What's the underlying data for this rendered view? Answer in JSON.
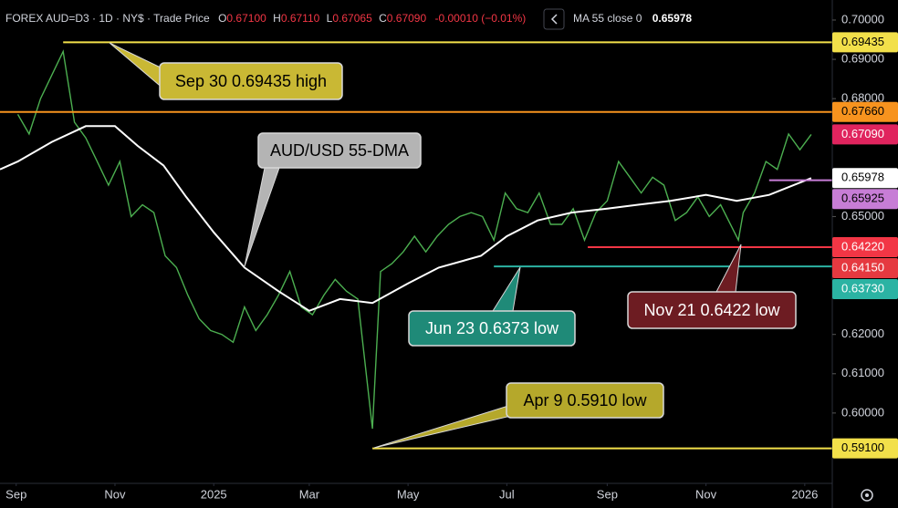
{
  "header": {
    "ohlc": [
      {
        "key": "O",
        "value": "0.67100"
      },
      {
        "key": "H",
        "value": "0.67110"
      },
      {
        "key": "L",
        "value": "0.67065"
      },
      {
        "key": "C",
        "value": "0.67090"
      }
    ],
    "change": "-0.00010 (−0.01%)",
    "indicator_value": "0.65978"
  },
  "chart_data": {
    "type": "line",
    "series": [
      {
        "name": "FOREX AUD=D3 · 1D · NY$ · Trade Price",
        "color": "#4caf50",
        "x": [
          "2024-09-02",
          "2024-09-09",
          "2024-09-16",
          "2024-09-23",
          "2024-09-30",
          "2024-10-07",
          "2024-10-14",
          "2024-10-21",
          "2024-10-28",
          "2024-11-04",
          "2024-11-11",
          "2024-11-18",
          "2024-11-25",
          "2024-12-02",
          "2024-12-09",
          "2024-12-16",
          "2024-12-23",
          "2024-12-30",
          "2025-01-06",
          "2025-01-13",
          "2025-01-20",
          "2025-01-27",
          "2025-02-03",
          "2025-02-10",
          "2025-02-17",
          "2025-02-24",
          "2025-03-03",
          "2025-03-10",
          "2025-03-17",
          "2025-03-24",
          "2025-03-31",
          "2025-04-09",
          "2025-04-14",
          "2025-04-21",
          "2025-04-28",
          "2025-05-05",
          "2025-05-12",
          "2025-05-19",
          "2025-05-26",
          "2025-06-02",
          "2025-06-09",
          "2025-06-16",
          "2025-06-23",
          "2025-06-30",
          "2025-07-07",
          "2025-07-14",
          "2025-07-21",
          "2025-07-28",
          "2025-08-04",
          "2025-08-11",
          "2025-08-18",
          "2025-08-25",
          "2025-09-01",
          "2025-09-08",
          "2025-09-15",
          "2025-09-22",
          "2025-09-29",
          "2025-10-06",
          "2025-10-13",
          "2025-10-20",
          "2025-10-27",
          "2025-11-03",
          "2025-11-10",
          "2025-11-21",
          "2025-11-24",
          "2025-12-01",
          "2025-12-08",
          "2025-12-15",
          "2025-12-22",
          "2025-12-29",
          "2026-01-05"
        ],
        "values": [
          0.676,
          0.671,
          0.68,
          0.686,
          0.692,
          0.674,
          0.67,
          0.664,
          0.658,
          0.664,
          0.65,
          0.653,
          0.651,
          0.64,
          0.637,
          0.63,
          0.624,
          0.621,
          0.62,
          0.618,
          0.627,
          0.621,
          0.625,
          0.63,
          0.636,
          0.627,
          0.625,
          0.63,
          0.634,
          0.631,
          0.629,
          0.596,
          0.636,
          0.638,
          0.641,
          0.645,
          0.641,
          0.645,
          0.648,
          0.65,
          0.651,
          0.65,
          0.644,
          0.656,
          0.652,
          0.651,
          0.656,
          0.648,
          0.648,
          0.652,
          0.644,
          0.651,
          0.654,
          0.664,
          0.66,
          0.656,
          0.66,
          0.658,
          0.649,
          0.651,
          0.655,
          0.65,
          0.653,
          0.644,
          0.651,
          0.656,
          0.664,
          0.662,
          0.671,
          0.667,
          0.6709
        ]
      },
      {
        "name": "MA 55 close 0",
        "color": "#ffffff",
        "x": [
          "2024-08-22",
          "2024-09-02",
          "2024-09-23",
          "2024-10-14",
          "2024-11-01",
          "2024-11-15",
          "2024-12-01",
          "2024-12-15",
          "2025-01-01",
          "2025-01-20",
          "2025-02-10",
          "2025-03-01",
          "2025-03-20",
          "2025-04-09",
          "2025-05-01",
          "2025-05-20",
          "2025-06-15",
          "2025-07-01",
          "2025-07-20",
          "2025-08-10",
          "2025-09-01",
          "2025-09-20",
          "2025-10-10",
          "2025-11-01",
          "2025-11-20",
          "2025-12-10",
          "2026-01-05"
        ],
        "values": [
          0.662,
          0.664,
          0.669,
          0.673,
          0.673,
          0.668,
          0.663,
          0.655,
          0.646,
          0.637,
          0.631,
          0.626,
          0.629,
          0.628,
          0.633,
          0.637,
          0.64,
          0.645,
          0.649,
          0.651,
          0.652,
          0.653,
          0.654,
          0.6555,
          0.654,
          0.6555,
          0.65978
        ]
      }
    ],
    "xlim": [
      "2024-08-22",
      "2026-01-18"
    ],
    "xticks": [
      {
        "value": "2024-09-01",
        "label": "Sep"
      },
      {
        "value": "2024-11-01",
        "label": "Nov"
      },
      {
        "value": "2025-01-01",
        "label": "2025"
      },
      {
        "value": "2025-03-01",
        "label": "Mar"
      },
      {
        "value": "2025-05-01",
        "label": "May"
      },
      {
        "value": "2025-07-01",
        "label": "Jul"
      },
      {
        "value": "2025-09-01",
        "label": "Sep"
      },
      {
        "value": "2025-11-01",
        "label": "Nov"
      },
      {
        "value": "2026-01-01",
        "label": "2026"
      }
    ],
    "ylim": [
      0.5821,
      0.7051
    ],
    "yticks": [
      {
        "value": 0.7,
        "label": "0.70000"
      },
      {
        "value": 0.69,
        "label": "0.69000"
      },
      {
        "value": 0.68,
        "label": "0.68000"
      },
      {
        "value": 0.65,
        "label": "0.65000"
      },
      {
        "value": 0.62,
        "label": "0.62000"
      },
      {
        "value": 0.61,
        "label": "0.61000"
      },
      {
        "value": 0.6,
        "label": "0.60000"
      }
    ],
    "levels": [
      {
        "value": 0.69435,
        "label": "0.69435",
        "color": "#f2e04a",
        "start": "2024-09-30"
      },
      {
        "value": 0.6766,
        "label": "0.67660",
        "color": "#f7931e",
        "start": "2024-08-22"
      },
      {
        "value": 0.65925,
        "label": "0.65925",
        "color": "#c77dd6",
        "start": "2025-12-10"
      },
      {
        "value": 0.6422,
        "label": "0.64220",
        "color": "#f23645",
        "start": "2025-08-20"
      },
      {
        "value": 0.6373,
        "label": "0.63730",
        "color": "#2bb3a3",
        "start": "2025-06-23"
      },
      {
        "value": 0.591,
        "label": "0.59100",
        "color": "#f2e04a",
        "start": "2025-04-09"
      }
    ],
    "price_labels": [
      {
        "value": 0.6709,
        "label": "0.67090",
        "color": "#e0245e"
      },
      {
        "value": 0.65978,
        "label": "0.65978",
        "color": "#ffffff"
      },
      {
        "value": 0.6415,
        "label": "0.64150",
        "color": "#e53940"
      }
    ],
    "annotations": [
      {
        "text": "Sep 30 0.69435 high",
        "color": "#c9b834"
      },
      {
        "text": "AUD/USD 55-DMA",
        "color": "#b4b4b4"
      },
      {
        "text": "Jun 23 0.6373 low",
        "color": "#1f8a78"
      },
      {
        "text": "Nov 21 0.6422 low",
        "color": "#6d1c22"
      },
      {
        "text": "Apr 9 0.5910 low",
        "color": "#b5a82b"
      }
    ]
  }
}
